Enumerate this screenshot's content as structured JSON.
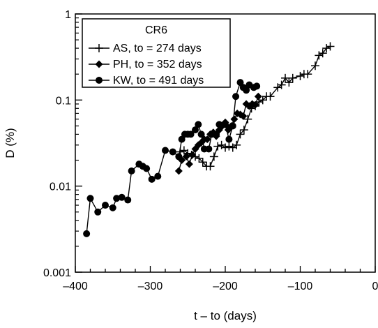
{
  "chart_data": {
    "type": "line",
    "title": "",
    "legend_title": "CR6",
    "legend_position": "top-left",
    "xlabel": "t – to (days)",
    "ylabel": "D (%)",
    "xscale": "linear",
    "yscale": "log",
    "xlim": [
      -400,
      0
    ],
    "ylim": [
      0.001,
      1
    ],
    "grid": false,
    "x_ticks": [
      -400,
      -300,
      -200,
      -100,
      0
    ],
    "x_tick_labels": [
      "–400",
      "–300",
      "–200",
      "–100",
      "0"
    ],
    "y_ticks": [
      0.001,
      0.01,
      0.1,
      1
    ],
    "y_tick_labels": [
      "0.001",
      "0.01",
      "0.1",
      "1"
    ],
    "series": [
      {
        "name": "AS, to = 274 days",
        "marker": "plus",
        "color": "#000000",
        "points": [
          [
            -260,
            0.025
          ],
          [
            -255,
            0.026
          ],
          [
            -250,
            0.024
          ],
          [
            -245,
            0.023
          ],
          [
            -240,
            0.022
          ],
          [
            -235,
            0.021
          ],
          [
            -230,
            0.019
          ],
          [
            -225,
            0.017
          ],
          [
            -220,
            0.017
          ],
          [
            -215,
            0.022
          ],
          [
            -210,
            0.029
          ],
          [
            -205,
            0.03
          ],
          [
            -200,
            0.028
          ],
          [
            -195,
            0.029
          ],
          [
            -190,
            0.028
          ],
          [
            -185,
            0.03
          ],
          [
            -180,
            0.04
          ],
          [
            -175,
            0.045
          ],
          [
            -170,
            0.06
          ],
          [
            -165,
            0.08
          ],
          [
            -160,
            0.085
          ],
          [
            -155,
            0.095
          ],
          [
            -150,
            0.1
          ],
          [
            -145,
            0.11
          ],
          [
            -140,
            0.11
          ],
          [
            -130,
            0.14
          ],
          [
            -125,
            0.15
          ],
          [
            -120,
            0.18
          ],
          [
            -115,
            0.16
          ],
          [
            -110,
            0.18
          ],
          [
            -100,
            0.19
          ],
          [
            -95,
            0.2
          ],
          [
            -90,
            0.2
          ],
          [
            -80,
            0.25
          ],
          [
            -75,
            0.33
          ],
          [
            -70,
            0.35
          ],
          [
            -65,
            0.4
          ],
          [
            -60,
            0.42
          ]
        ]
      },
      {
        "name": "PH, to = 352 days",
        "marker": "diamond",
        "color": "#000000",
        "points": [
          [
            -262,
            0.015
          ],
          [
            -258,
            0.02
          ],
          [
            -252,
            0.022
          ],
          [
            -248,
            0.018
          ],
          [
            -244,
            0.023
          ],
          [
            -240,
            0.027
          ],
          [
            -236,
            0.03
          ],
          [
            -232,
            0.032
          ],
          [
            -228,
            0.035
          ],
          [
            -224,
            0.035
          ],
          [
            -220,
            0.04
          ],
          [
            -216,
            0.042
          ],
          [
            -212,
            0.038
          ],
          [
            -208,
            0.045
          ],
          [
            -204,
            0.05
          ],
          [
            -200,
            0.055
          ],
          [
            -196,
            0.045
          ],
          [
            -192,
            0.05
          ],
          [
            -188,
            0.06
          ],
          [
            -184,
            0.07
          ],
          [
            -180,
            0.068
          ],
          [
            -176,
            0.065
          ],
          [
            -172,
            0.09
          ],
          [
            -168,
            0.085
          ],
          [
            -164,
            0.09
          ],
          [
            -160,
            0.088
          ],
          [
            -156,
            0.11
          ]
        ]
      },
      {
        "name": "KW, to = 491 days",
        "marker": "circle",
        "color": "#000000",
        "points": [
          [
            -385,
            0.0028
          ],
          [
            -380,
            0.0072
          ],
          [
            -370,
            0.005
          ],
          [
            -360,
            0.006
          ],
          [
            -350,
            0.0056
          ],
          [
            -345,
            0.0072
          ],
          [
            -338,
            0.0074
          ],
          [
            -330,
            0.0069
          ],
          [
            -325,
            0.015
          ],
          [
            -315,
            0.018
          ],
          [
            -310,
            0.017
          ],
          [
            -305,
            0.016
          ],
          [
            -298,
            0.012
          ],
          [
            -290,
            0.013
          ],
          [
            -280,
            0.026
          ],
          [
            -270,
            0.025
          ],
          [
            -262,
            0.022
          ],
          [
            -258,
            0.035
          ],
          [
            -254,
            0.04
          ],
          [
            -250,
            0.04
          ],
          [
            -246,
            0.04
          ],
          [
            -240,
            0.045
          ],
          [
            -236,
            0.052
          ],
          [
            -232,
            0.04
          ],
          [
            -228,
            0.027
          ],
          [
            -222,
            0.027
          ],
          [
            -218,
            0.04
          ],
          [
            -212,
            0.04
          ],
          [
            -208,
            0.052
          ],
          [
            -200,
            0.052
          ],
          [
            -195,
            0.035
          ],
          [
            -190,
            0.05
          ],
          [
            -186,
            0.11
          ],
          [
            -180,
            0.16
          ],
          [
            -176,
            0.14
          ],
          [
            -172,
            0.13
          ],
          [
            -168,
            0.15
          ],
          [
            -162,
            0.14
          ],
          [
            -158,
            0.145
          ]
        ]
      }
    ]
  }
}
